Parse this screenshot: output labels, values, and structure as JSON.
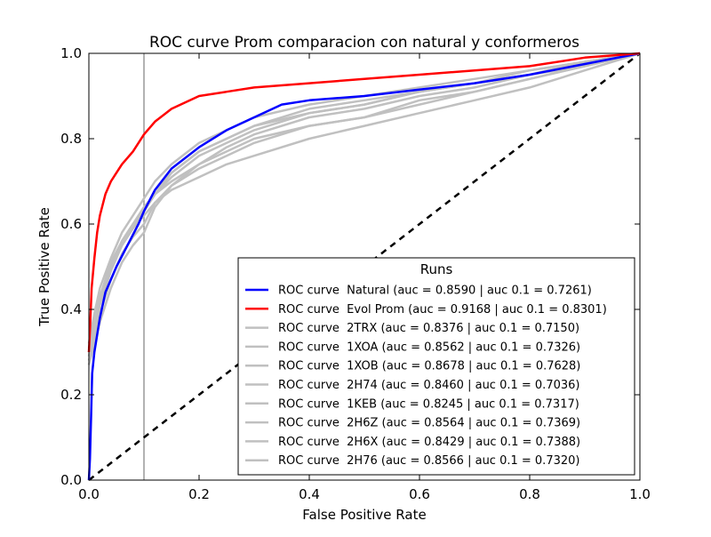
{
  "chart_data": {
    "type": "line",
    "title": "ROC curve Prom comparacion con natural y conformeros",
    "xlabel": "False Positive Rate",
    "ylabel": "True Positive Rate",
    "xlim": [
      0,
      1
    ],
    "ylim": [
      0,
      1
    ],
    "xticks": [
      "0.0",
      "0.2",
      "0.4",
      "0.6",
      "0.8",
      "1.0"
    ],
    "yticks": [
      "0.0",
      "0.2",
      "0.4",
      "0.6",
      "0.8",
      "1.0"
    ],
    "grid": false,
    "legend": {
      "title": "Runs",
      "placement": "lower-right"
    },
    "reference_lines": [
      {
        "type": "vertical",
        "x": 0.1,
        "color": "#808080"
      },
      {
        "type": "diagonal",
        "from": [
          0,
          0
        ],
        "to": [
          1,
          1
        ],
        "style": "dashed",
        "color": "#000000"
      }
    ],
    "series": [
      {
        "name": "ROC curve  Natural (auc = 0.8590 | auc 0.1 = 0.7261)",
        "color": "#0000ff",
        "points": [
          [
            0,
            0
          ],
          [
            0.002,
            0.05
          ],
          [
            0.004,
            0.15
          ],
          [
            0.006,
            0.25
          ],
          [
            0.01,
            0.3
          ],
          [
            0.02,
            0.38
          ],
          [
            0.03,
            0.44
          ],
          [
            0.05,
            0.5
          ],
          [
            0.07,
            0.55
          ],
          [
            0.09,
            0.6
          ],
          [
            0.1,
            0.63
          ],
          [
            0.12,
            0.68
          ],
          [
            0.15,
            0.73
          ],
          [
            0.18,
            0.76
          ],
          [
            0.2,
            0.78
          ],
          [
            0.25,
            0.82
          ],
          [
            0.3,
            0.85
          ],
          [
            0.35,
            0.88
          ],
          [
            0.4,
            0.89
          ],
          [
            0.5,
            0.9
          ],
          [
            0.6,
            0.915
          ],
          [
            0.7,
            0.93
          ],
          [
            0.8,
            0.95
          ],
          [
            0.9,
            0.975
          ],
          [
            1,
            1
          ]
        ]
      },
      {
        "name": "ROC curve  Evol Prom (auc = 0.9168 | auc 0.1 = 0.8301)",
        "color": "#ff0000",
        "points": [
          [
            0,
            0.3
          ],
          [
            0.002,
            0.35
          ],
          [
            0.005,
            0.45
          ],
          [
            0.01,
            0.52
          ],
          [
            0.015,
            0.58
          ],
          [
            0.02,
            0.62
          ],
          [
            0.03,
            0.67
          ],
          [
            0.04,
            0.7
          ],
          [
            0.06,
            0.74
          ],
          [
            0.08,
            0.77
          ],
          [
            0.1,
            0.81
          ],
          [
            0.12,
            0.84
          ],
          [
            0.15,
            0.87
          ],
          [
            0.2,
            0.9
          ],
          [
            0.25,
            0.91
          ],
          [
            0.3,
            0.92
          ],
          [
            0.4,
            0.93
          ],
          [
            0.5,
            0.94
          ],
          [
            0.6,
            0.95
          ],
          [
            0.7,
            0.96
          ],
          [
            0.8,
            0.97
          ],
          [
            0.9,
            0.99
          ],
          [
            1,
            1
          ]
        ]
      },
      {
        "name": "ROC curve  2TRX (auc = 0.8376 | auc 0.1 = 0.7150)",
        "color": "#c0c0c0",
        "points": [
          [
            0,
            0.28
          ],
          [
            0.01,
            0.33
          ],
          [
            0.02,
            0.39
          ],
          [
            0.04,
            0.47
          ],
          [
            0.06,
            0.53
          ],
          [
            0.08,
            0.57
          ],
          [
            0.1,
            0.6
          ],
          [
            0.12,
            0.65
          ],
          [
            0.15,
            0.69
          ],
          [
            0.2,
            0.73
          ],
          [
            0.25,
            0.76
          ],
          [
            0.3,
            0.79
          ],
          [
            0.4,
            0.83
          ],
          [
            0.5,
            0.85
          ],
          [
            0.6,
            0.89
          ],
          [
            0.7,
            0.91
          ],
          [
            0.8,
            0.94
          ],
          [
            0.9,
            0.97
          ],
          [
            1,
            1
          ]
        ]
      },
      {
        "name": "ROC curve  1XOA (auc = 0.8562 | auc 0.1 = 0.7326)",
        "color": "#c0c0c0",
        "points": [
          [
            0,
            0.3
          ],
          [
            0.01,
            0.36
          ],
          [
            0.02,
            0.42
          ],
          [
            0.04,
            0.5
          ],
          [
            0.06,
            0.55
          ],
          [
            0.08,
            0.59
          ],
          [
            0.1,
            0.63
          ],
          [
            0.12,
            0.67
          ],
          [
            0.15,
            0.71
          ],
          [
            0.2,
            0.76
          ],
          [
            0.25,
            0.79
          ],
          [
            0.3,
            0.82
          ],
          [
            0.4,
            0.86
          ],
          [
            0.5,
            0.88
          ],
          [
            0.6,
            0.91
          ],
          [
            0.7,
            0.93
          ],
          [
            0.8,
            0.95
          ],
          [
            0.9,
            0.98
          ],
          [
            1,
            1
          ]
        ]
      },
      {
        "name": "ROC curve  1XOB (auc = 0.8678 | auc 0.1 = 0.7628)",
        "color": "#c0c0c0",
        "points": [
          [
            0,
            0.32
          ],
          [
            0.01,
            0.39
          ],
          [
            0.02,
            0.45
          ],
          [
            0.04,
            0.52
          ],
          [
            0.06,
            0.58
          ],
          [
            0.08,
            0.62
          ],
          [
            0.1,
            0.66
          ],
          [
            0.12,
            0.7
          ],
          [
            0.15,
            0.74
          ],
          [
            0.2,
            0.79
          ],
          [
            0.25,
            0.82
          ],
          [
            0.3,
            0.85
          ],
          [
            0.4,
            0.88
          ],
          [
            0.5,
            0.9
          ],
          [
            0.6,
            0.92
          ],
          [
            0.7,
            0.94
          ],
          [
            0.8,
            0.96
          ],
          [
            0.9,
            0.98
          ],
          [
            1,
            1
          ]
        ]
      },
      {
        "name": "ROC curve  2H74 (auc = 0.8460 | auc 0.1 = 0.7036)",
        "color": "#c0c0c0",
        "points": [
          [
            0,
            0.27
          ],
          [
            0.01,
            0.32
          ],
          [
            0.02,
            0.37
          ],
          [
            0.04,
            0.45
          ],
          [
            0.06,
            0.51
          ],
          [
            0.08,
            0.55
          ],
          [
            0.1,
            0.58
          ],
          [
            0.12,
            0.64
          ],
          [
            0.15,
            0.69
          ],
          [
            0.2,
            0.74
          ],
          [
            0.25,
            0.78
          ],
          [
            0.3,
            0.81
          ],
          [
            0.4,
            0.85
          ],
          [
            0.5,
            0.87
          ],
          [
            0.6,
            0.9
          ],
          [
            0.7,
            0.92
          ],
          [
            0.8,
            0.95
          ],
          [
            0.9,
            0.97
          ],
          [
            1,
            1
          ]
        ]
      },
      {
        "name": "ROC curve  1KEB (auc = 0.8245 | auc 0.1 = 0.7317)",
        "color": "#c0c0c0",
        "points": [
          [
            0,
            0.29
          ],
          [
            0.01,
            0.35
          ],
          [
            0.02,
            0.41
          ],
          [
            0.04,
            0.49
          ],
          [
            0.06,
            0.55
          ],
          [
            0.08,
            0.59
          ],
          [
            0.1,
            0.62
          ],
          [
            0.12,
            0.65
          ],
          [
            0.15,
            0.68
          ],
          [
            0.2,
            0.71
          ],
          [
            0.25,
            0.74
          ],
          [
            0.3,
            0.76
          ],
          [
            0.4,
            0.8
          ],
          [
            0.5,
            0.83
          ],
          [
            0.6,
            0.86
          ],
          [
            0.7,
            0.89
          ],
          [
            0.8,
            0.92
          ],
          [
            0.9,
            0.96
          ],
          [
            1,
            1
          ]
        ]
      },
      {
        "name": "ROC curve  2H6Z (auc = 0.8564 | auc 0.1 = 0.7369)",
        "color": "#c0c0c0",
        "points": [
          [
            0,
            0.3
          ],
          [
            0.01,
            0.36
          ],
          [
            0.02,
            0.43
          ],
          [
            0.04,
            0.5
          ],
          [
            0.06,
            0.56
          ],
          [
            0.08,
            0.6
          ],
          [
            0.1,
            0.63
          ],
          [
            0.12,
            0.67
          ],
          [
            0.15,
            0.72
          ],
          [
            0.2,
            0.77
          ],
          [
            0.25,
            0.8
          ],
          [
            0.3,
            0.83
          ],
          [
            0.4,
            0.86
          ],
          [
            0.5,
            0.88
          ],
          [
            0.6,
            0.91
          ],
          [
            0.7,
            0.93
          ],
          [
            0.8,
            0.95
          ],
          [
            0.9,
            0.98
          ],
          [
            1,
            1
          ]
        ]
      },
      {
        "name": "ROC curve  2H6X (auc = 0.8429 | auc 0.1 = 0.7388)",
        "color": "#c0c0c0",
        "points": [
          [
            0,
            0.31
          ],
          [
            0.01,
            0.37
          ],
          [
            0.02,
            0.43
          ],
          [
            0.04,
            0.51
          ],
          [
            0.06,
            0.56
          ],
          [
            0.08,
            0.6
          ],
          [
            0.1,
            0.64
          ],
          [
            0.12,
            0.67
          ],
          [
            0.15,
            0.7
          ],
          [
            0.2,
            0.74
          ],
          [
            0.25,
            0.77
          ],
          [
            0.3,
            0.8
          ],
          [
            0.4,
            0.83
          ],
          [
            0.5,
            0.85
          ],
          [
            0.6,
            0.88
          ],
          [
            0.7,
            0.91
          ],
          [
            0.8,
            0.94
          ],
          [
            0.9,
            0.97
          ],
          [
            1,
            1
          ]
        ]
      },
      {
        "name": "ROC curve  2H76 (auc = 0.8566 | auc 0.1 = 0.7320)",
        "color": "#c0c0c0",
        "points": [
          [
            0,
            0.3
          ],
          [
            0.01,
            0.36
          ],
          [
            0.02,
            0.42
          ],
          [
            0.04,
            0.5
          ],
          [
            0.06,
            0.55
          ],
          [
            0.08,
            0.59
          ],
          [
            0.1,
            0.63
          ],
          [
            0.12,
            0.68
          ],
          [
            0.15,
            0.72
          ],
          [
            0.2,
            0.77
          ],
          [
            0.25,
            0.8
          ],
          [
            0.3,
            0.83
          ],
          [
            0.4,
            0.87
          ],
          [
            0.5,
            0.89
          ],
          [
            0.6,
            0.91
          ],
          [
            0.7,
            0.93
          ],
          [
            0.8,
            0.96
          ],
          [
            0.9,
            0.98
          ],
          [
            1,
            1
          ]
        ]
      }
    ]
  }
}
